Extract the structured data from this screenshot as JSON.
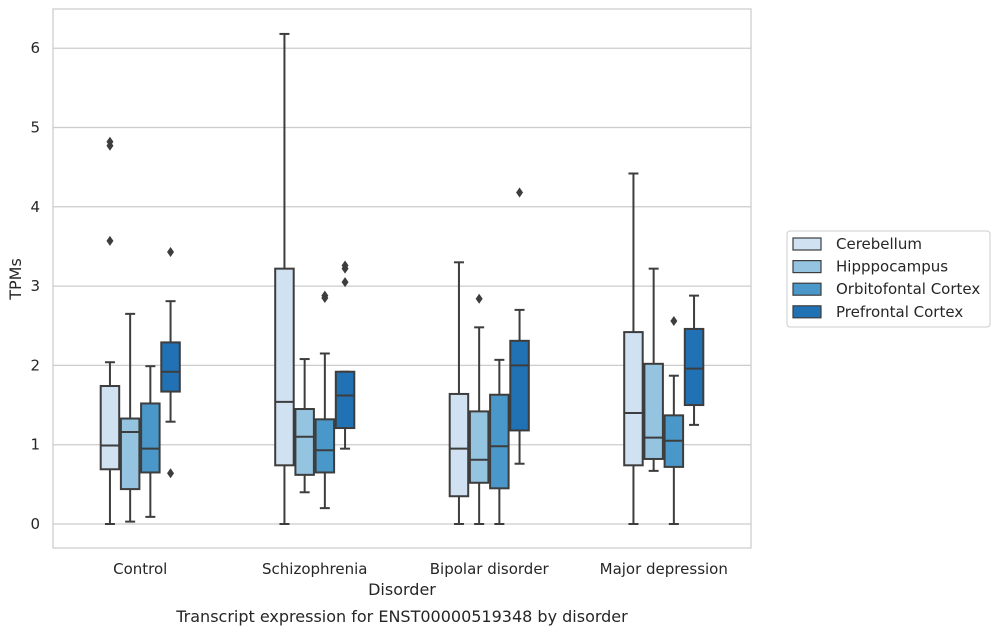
{
  "chart_data": {
    "type": "box",
    "title": "",
    "caption": "Transcript expression for ENST00000519348 by disorder",
    "xlabel": "Disorder",
    "ylabel": "TPMs",
    "ylim": [
      -0.3,
      6.5
    ],
    "yticks": [
      0,
      1,
      2,
      3,
      4,
      5,
      6
    ],
    "grid": true,
    "legend_position": "right",
    "categories": [
      "Control",
      "Schizophrenia",
      "Bipolar disorder",
      "Major depression"
    ],
    "series": [
      {
        "name": "Cerebellum",
        "color": "#d0e1f2",
        "boxes": [
          {
            "whisker_low": 0,
            "q1": 0.69,
            "median": 0.99,
            "q3": 1.74,
            "whisker_high": 2.04,
            "outliers": [
              3.57,
              4.77,
              4.82
            ]
          },
          {
            "whisker_low": 0,
            "q1": 0.74,
            "median": 1.54,
            "q3": 3.22,
            "whisker_high": 6.18,
            "outliers": []
          },
          {
            "whisker_low": 0,
            "q1": 0.35,
            "median": 0.95,
            "q3": 1.64,
            "whisker_high": 3.3,
            "outliers": []
          },
          {
            "whisker_low": 0,
            "q1": 0.74,
            "median": 1.4,
            "q3": 2.42,
            "whisker_high": 4.42,
            "outliers": []
          }
        ]
      },
      {
        "name": "Hipppocampus",
        "color": "#94c4df",
        "boxes": [
          {
            "whisker_low": 0.03,
            "q1": 0.44,
            "median": 1.16,
            "q3": 1.33,
            "whisker_high": 2.65,
            "outliers": []
          },
          {
            "whisker_low": 0.4,
            "q1": 0.62,
            "median": 1.1,
            "q3": 1.45,
            "whisker_high": 2.08,
            "outliers": []
          },
          {
            "whisker_low": 0,
            "q1": 0.52,
            "median": 0.81,
            "q3": 1.42,
            "whisker_high": 2.48,
            "outliers": [
              2.84
            ]
          },
          {
            "whisker_low": 0.67,
            "q1": 0.82,
            "median": 1.09,
            "q3": 2.02,
            "whisker_high": 3.22,
            "outliers": []
          }
        ]
      },
      {
        "name": "Orbitofontal Cortex",
        "color": "#4a98c9",
        "boxes": [
          {
            "whisker_low": 0.09,
            "q1": 0.65,
            "median": 0.95,
            "q3": 1.52,
            "whisker_high": 1.99,
            "outliers": []
          },
          {
            "whisker_low": 0.2,
            "q1": 0.65,
            "median": 0.93,
            "q3": 1.32,
            "whisker_high": 2.15,
            "outliers": [
              2.85,
              2.88
            ]
          },
          {
            "whisker_low": 0,
            "q1": 0.45,
            "median": 0.98,
            "q3": 1.63,
            "whisker_high": 2.07,
            "outliers": []
          },
          {
            "whisker_low": 0,
            "q1": 0.72,
            "median": 1.05,
            "q3": 1.37,
            "whisker_high": 1.87,
            "outliers": [
              2.56
            ]
          }
        ]
      },
      {
        "name": "Prefrontal Cortex",
        "color": "#2171b5",
        "boxes": [
          {
            "whisker_low": 1.29,
            "q1": 1.67,
            "median": 1.92,
            "q3": 2.29,
            "whisker_high": 2.81,
            "outliers": [
              0.64,
              3.43
            ]
          },
          {
            "whisker_low": 0.95,
            "q1": 1.21,
            "median": 1.62,
            "q3": 1.92,
            "whisker_high": 1.92,
            "outliers": [
              3.05,
              3.22,
              3.26
            ]
          },
          {
            "whisker_low": 0.76,
            "q1": 1.18,
            "median": 2.0,
            "q3": 2.31,
            "whisker_high": 2.7,
            "outliers": [
              4.18
            ]
          },
          {
            "whisker_low": 1.25,
            "q1": 1.5,
            "median": 1.96,
            "q3": 2.46,
            "whisker_high": 2.88,
            "outliers": []
          }
        ]
      }
    ]
  }
}
